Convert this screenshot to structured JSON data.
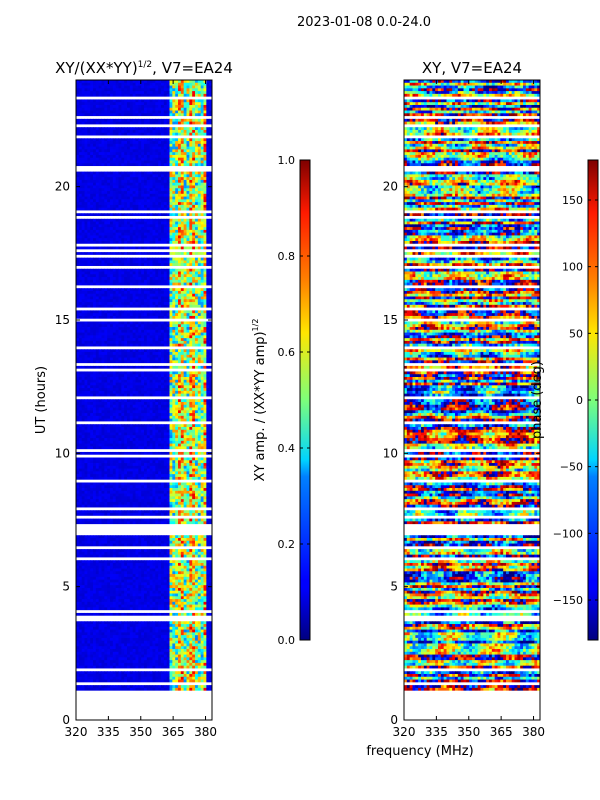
{
  "figure": {
    "suptitle": "2023-01-08 0.0-24.0",
    "shared_xlabel": "frequency (MHz)"
  },
  "chart_data": [
    {
      "type": "heatmap",
      "id": "amp",
      "title_main": "XY/(XX*YY)",
      "title_sup": "1/2",
      "title_suffix": ", V7=EA24",
      "ylabel": "UT (hours)",
      "xlim": [
        320,
        383
      ],
      "ylim": [
        0,
        24
      ],
      "xticks": [
        320,
        335,
        350,
        365,
        380
      ],
      "yticks": [
        0,
        5,
        10,
        15,
        20
      ],
      "data_start_hour": 1.1,
      "colorbar": {
        "label_main": "XY amp. / (XX*YY amp)",
        "label_sup": "1/2",
        "range": [
          0.0,
          1.0
        ],
        "ticks": [
          0.0,
          0.2,
          0.4,
          0.6,
          0.8,
          1.0
        ],
        "tick_labels": [
          "0.0",
          "0.2",
          "0.4",
          "0.6",
          "0.8",
          "1.0"
        ]
      },
      "description_values": {
        "background": 0.08,
        "band_freq_range_mhz": [
          363,
          380
        ],
        "band_peak": 0.85
      }
    },
    {
      "type": "heatmap",
      "id": "phase",
      "title_main": "XY, V7=EA24",
      "xlim": [
        320,
        383
      ],
      "ylim": [
        0,
        24
      ],
      "xticks": [
        320,
        335,
        350,
        365,
        380
      ],
      "yticks": [
        0,
        5,
        10,
        15,
        20
      ],
      "data_start_hour": 1.1,
      "colorbar": {
        "label_main": "phase (deg)",
        "range": [
          -180,
          180
        ],
        "ticks": [
          -150,
          -100,
          -50,
          0,
          50,
          100,
          150
        ],
        "tick_labels": [
          "−150",
          "−100",
          "−50",
          "0",
          "50",
          "100",
          "150"
        ]
      }
    }
  ],
  "colors": {
    "axis": "#000000",
    "gap": "#ffffff"
  }
}
